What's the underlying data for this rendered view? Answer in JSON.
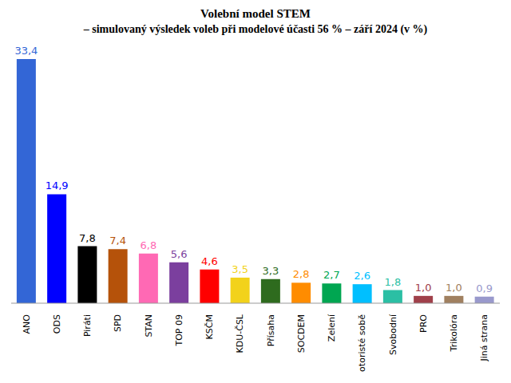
{
  "chart_data": {
    "type": "bar",
    "title": "Volební model STEM",
    "subtitle": "– simulovaný výsledek voleb při modelové účasti 56 % – září 2024 (v %)",
    "categories": [
      "ANO",
      "ODS",
      "Piráti",
      "SPD",
      "STAN",
      "TOP 09",
      "KSČM",
      "KDU-ČSL",
      "Přísaha",
      "SOCDEM",
      "Zelení",
      "Motoristé sobě",
      "Svobodní",
      "PRO",
      "Trikolóra",
      "Jiná strana"
    ],
    "values": [
      33.4,
      14.9,
      7.8,
      7.4,
      6.8,
      5.6,
      4.6,
      3.5,
      3.3,
      2.8,
      2.7,
      2.6,
      1.8,
      1.0,
      1.0,
      0.9
    ],
    "value_labels": [
      "33,4",
      "14,9",
      "7,8",
      "7,4",
      "6,8",
      "5,6",
      "4,6",
      "3,5",
      "3,3",
      "2,8",
      "2,7",
      "2,6",
      "1,8",
      "1,0",
      "1,0",
      "0,9"
    ],
    "colors": [
      "#3366d6",
      "#0000ff",
      "#000000",
      "#b5520a",
      "#ff69b4",
      "#7b3f9e",
      "#ff0000",
      "#f2d21b",
      "#2e6b1e",
      "#ff8c00",
      "#00a651",
      "#00bfff",
      "#2bbfa4",
      "#a0404a",
      "#a08060",
      "#9999cc"
    ],
    "data_labels": true,
    "tick_labels": "x"
  }
}
